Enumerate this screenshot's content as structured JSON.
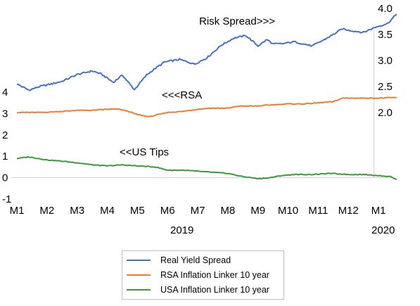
{
  "chart_data": {
    "type": "line",
    "x_ticks": [
      "M1",
      "M2",
      "M3",
      "M4",
      "M5",
      "M6",
      "M7",
      "M8",
      "M9",
      "M10",
      "M11",
      "M12",
      "M1"
    ],
    "year_labels": [
      "2019",
      "2020"
    ],
    "left_axis_ticks": [
      "4",
      "3",
      "2",
      "1",
      "0",
      "-1"
    ],
    "right_axis_ticks": [
      "4.0",
      "3.5",
      "3.0",
      "2.5",
      "2.0"
    ],
    "left_ylim": [
      -1,
      4
    ],
    "right_ylim": [
      1.5,
      4.0
    ],
    "annotations": {
      "risk": "Risk Spread>>>",
      "rsa": "<<<RSA",
      "us": "<<US Tips"
    },
    "gridlines": false,
    "legend_position": "bottom",
    "series": [
      {
        "name": "Real Yield Spread",
        "axis": "right",
        "color": "#4472C4",
        "x": [
          0,
          0.4,
          0.75,
          1.0,
          1.5,
          2.0,
          2.5,
          2.8,
          3.2,
          3.5,
          3.9,
          4.3,
          4.6,
          4.9,
          5.4,
          5.9,
          6.3,
          6.8,
          7.2,
          7.6,
          8.0,
          8.3,
          8.5,
          8.8,
          9.2,
          9.8,
          10.2,
          10.5,
          10.8,
          11.0,
          11.5,
          11.9,
          12.3,
          12.6
        ],
        "values": [
          2.55,
          2.43,
          2.5,
          2.53,
          2.6,
          2.73,
          2.8,
          2.74,
          2.58,
          2.72,
          2.44,
          2.72,
          2.85,
          2.97,
          3.02,
          2.93,
          3.05,
          3.3,
          3.43,
          3.48,
          3.28,
          3.4,
          3.32,
          3.32,
          3.36,
          3.28,
          3.4,
          3.5,
          3.61,
          3.58,
          3.54,
          3.64,
          3.71,
          3.89
        ]
      },
      {
        "name": "RSA Inflation Linker 10 year",
        "axis": "left",
        "color": "#ED7D31",
        "x": [
          0,
          0.8,
          1.5,
          2.0,
          2.5,
          3.0,
          3.4,
          3.7,
          4.0,
          4.4,
          5.0,
          5.5,
          6.0,
          6.4,
          7.0,
          7.4,
          8.0,
          8.4,
          9.0,
          9.5,
          10.0,
          10.5,
          10.8,
          11.5,
          12.0,
          12.6
        ],
        "values": [
          3.05,
          3.05,
          3.1,
          3.15,
          3.15,
          3.2,
          3.2,
          3.1,
          2.95,
          2.85,
          3.05,
          3.1,
          3.2,
          3.25,
          3.25,
          3.35,
          3.35,
          3.4,
          3.45,
          3.45,
          3.5,
          3.55,
          3.72,
          3.72,
          3.72,
          3.75
        ]
      },
      {
        "name": "USA Inflation Linker 10 year",
        "axis": "left",
        "color": "#3A9B3A",
        "x": [
          0,
          0.4,
          1.0,
          1.5,
          2.0,
          2.5,
          3.0,
          3.5,
          4.0,
          4.6,
          5.0,
          5.5,
          6.0,
          6.5,
          7.0,
          7.5,
          7.8,
          8.0,
          8.4,
          8.8,
          9.2,
          9.8,
          10.4,
          11.0,
          11.5,
          12.0,
          12.4,
          12.6
        ],
        "values": [
          0.9,
          0.97,
          0.83,
          0.77,
          0.7,
          0.6,
          0.55,
          0.6,
          0.55,
          0.5,
          0.35,
          0.35,
          0.3,
          0.25,
          0.2,
          0.05,
          0.0,
          -0.05,
          0.0,
          0.1,
          0.15,
          0.15,
          0.2,
          0.15,
          0.15,
          0.1,
          0.05,
          -0.1
        ]
      }
    ]
  }
}
